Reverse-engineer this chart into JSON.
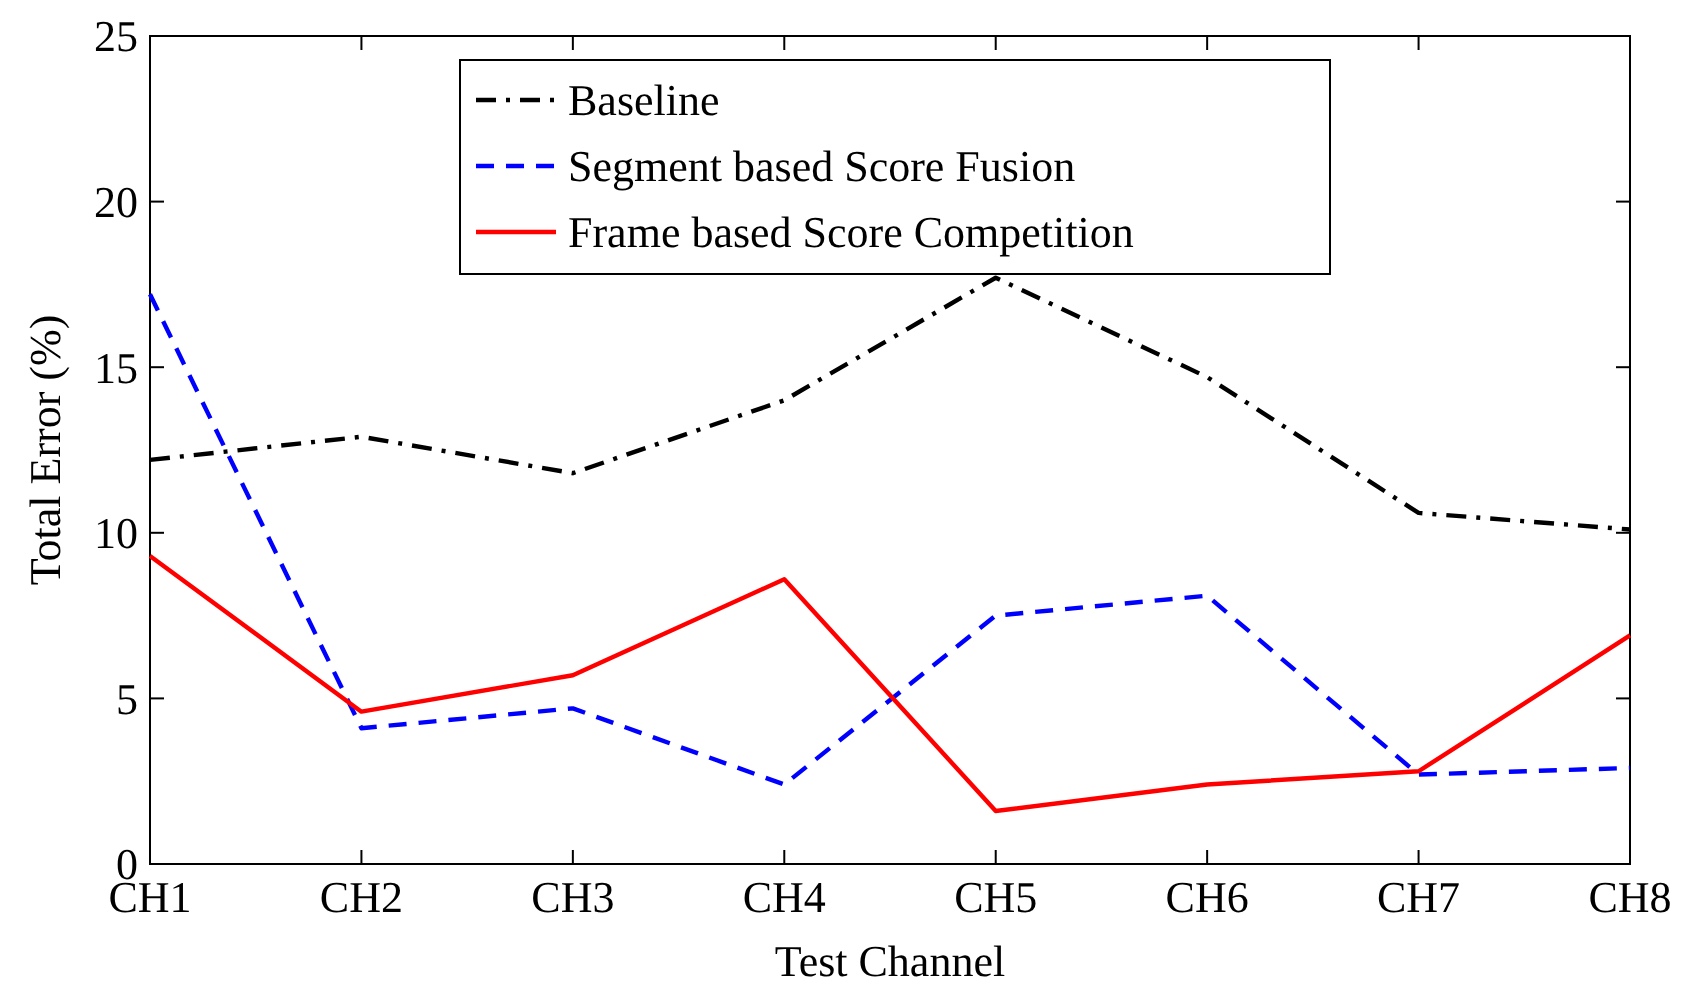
{
  "chart_data": {
    "type": "line",
    "xlabel": "Test Channel",
    "ylabel": "Total Error (%)",
    "categories": [
      "CH1",
      "CH2",
      "CH3",
      "CH4",
      "CH5",
      "CH6",
      "CH7",
      "CH8"
    ],
    "series": [
      {
        "name": "Baseline",
        "color": "#000000",
        "line_style": "dashdot",
        "values": [
          12.2,
          12.9,
          11.8,
          14.0,
          17.7,
          14.7,
          10.6,
          10.1
        ]
      },
      {
        "name": "Segment based Score Fusion",
        "color": "#0000ff",
        "line_style": "dashed",
        "values": [
          17.2,
          4.1,
          4.7,
          2.4,
          7.5,
          8.1,
          2.7,
          2.9
        ]
      },
      {
        "name": "Frame based Score Competition",
        "color": "#ff0000",
        "line_style": "solid",
        "values": [
          9.3,
          4.6,
          5.7,
          8.6,
          1.6,
          2.4,
          2.8,
          6.9
        ]
      }
    ],
    "ylim": [
      0,
      25
    ],
    "yticks": [
      0,
      5,
      10,
      15,
      20,
      25
    ],
    "grid": false,
    "legend": "top"
  }
}
